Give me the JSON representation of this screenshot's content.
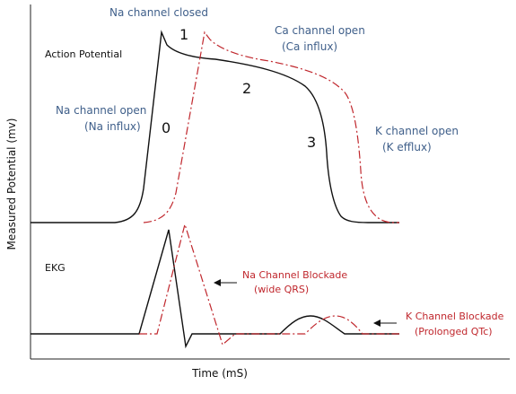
{
  "axes": {
    "x_label": "Time (mS)",
    "y_label": "Measured Potential (mv)"
  },
  "sections": {
    "action_potential": "Action Potential",
    "ekg": "EKG"
  },
  "phases": {
    "phase_0": "0",
    "phase_1": "1",
    "phase_2": "2",
    "phase_3": "3"
  },
  "annotations": {
    "na_closed": "Na channel closed",
    "ca_open_line1": "Ca channel open",
    "ca_open_line2": "(Ca influx)",
    "na_open_line1": "Na channel open",
    "na_open_line2": "(Na influx)",
    "k_open_line1": "K channel open",
    "k_open_line2": "(K efflux)",
    "na_block_line1": "Na Channel Blockade",
    "na_block_line2": "(wide QRS)",
    "k_block_line1": "K Channel Blockade",
    "k_block_line2": "(Prolonged QTc)"
  },
  "colors": {
    "normal_trace": "#111111",
    "blockade_trace": "#c0272d",
    "channel_text": "#3f5f8a"
  }
}
